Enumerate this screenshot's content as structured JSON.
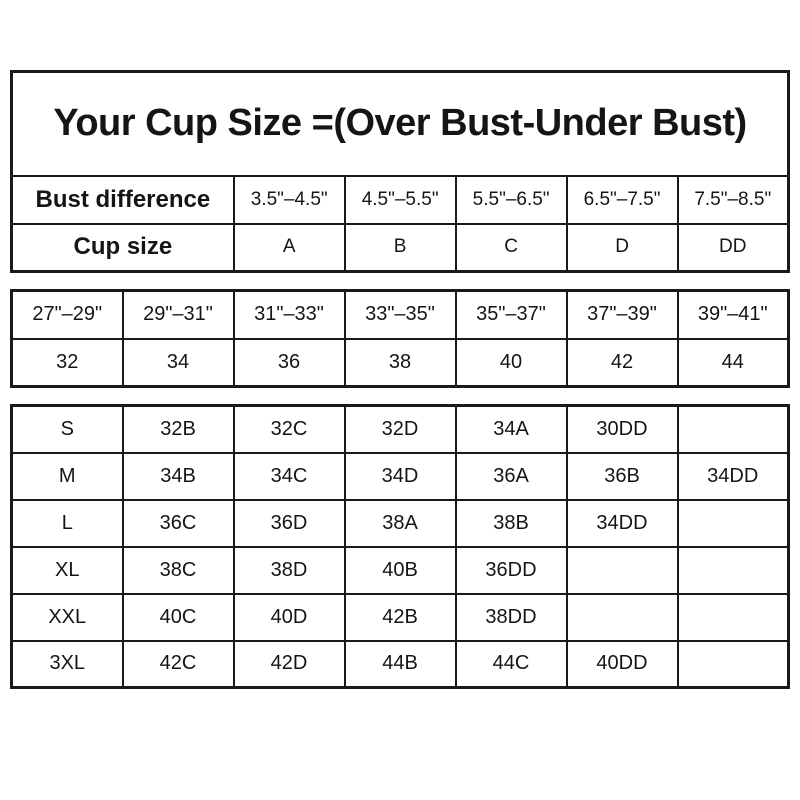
{
  "title": "Your Cup Size =(Over Bust-Under Bust)",
  "colors": {
    "border": "#1a1a1a",
    "text": "#151515",
    "background": "#ffffff"
  },
  "cup_table": {
    "difference_label": "Bust difference",
    "differences": [
      "3.5\"–4.5\"",
      "4.5\"–5.5\"",
      "5.5\"–6.5\"",
      "6.5\"–7.5\"",
      "7.5\"–8.5\""
    ],
    "cup_label": "Cup size",
    "cups": [
      "A",
      "B",
      "C",
      "D",
      "DD"
    ]
  },
  "band_table": {
    "underbust_ranges": [
      "27\"–29\"",
      "29\"–31\"",
      "31\"–33\"",
      "33\"–35\"",
      "35\"–37\"",
      "37\"–39\"",
      "39\"–41\""
    ],
    "band_sizes": [
      "32",
      "34",
      "36",
      "38",
      "40",
      "42",
      "44"
    ]
  },
  "size_table": {
    "rows": [
      {
        "size": "S",
        "cells": [
          "32B",
          "32C",
          "32D",
          "34A",
          "30DD",
          ""
        ]
      },
      {
        "size": "M",
        "cells": [
          "34B",
          "34C",
          "34D",
          "36A",
          "36B",
          "34DD"
        ]
      },
      {
        "size": "L",
        "cells": [
          "36C",
          "36D",
          "38A",
          "38B",
          "34DD",
          ""
        ]
      },
      {
        "size": "XL",
        "cells": [
          "38C",
          "38D",
          "40B",
          "36DD",
          "",
          ""
        ]
      },
      {
        "size": "XXL",
        "cells": [
          "40C",
          "40D",
          "42B",
          "38DD",
          "",
          ""
        ]
      },
      {
        "size": "3XL",
        "cells": [
          "42C",
          "42D",
          "44B",
          "44C",
          "40DD",
          ""
        ]
      }
    ]
  }
}
